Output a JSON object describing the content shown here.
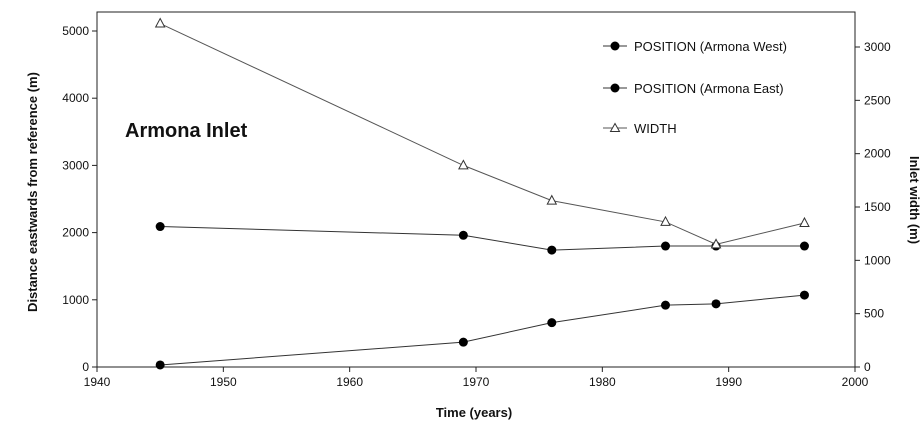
{
  "chart_data": {
    "type": "line",
    "annotation": "Armona Inlet",
    "xlabel": "Time (years)",
    "ylabel_left": "Distance eastwards from reference (m)",
    "ylabel_right": "Inlet width (m)",
    "xlim": [
      1940,
      2000
    ],
    "ylim_left": [
      0,
      5000
    ],
    "ylim_right": [
      0,
      3000
    ],
    "x_ticks": [
      "1940",
      "1950",
      "1960",
      "1970",
      "1980",
      "1990",
      "2000"
    ],
    "y_left_ticks": [
      "0",
      "1000",
      "2000",
      "3000",
      "4000",
      "5000"
    ],
    "y_right_ticks": [
      "0",
      "500",
      "1000",
      "1500",
      "2000",
      "2500",
      "3000"
    ],
    "grid": false,
    "legend_placement": "top-right",
    "series": [
      {
        "name": "POSITION (Armona West)",
        "axis": "left",
        "marker": "filled-circle",
        "x": [
          1945,
          1969,
          1976,
          1985,
          1989,
          1996
        ],
        "y": [
          30,
          370,
          660,
          920,
          940,
          1070
        ]
      },
      {
        "name": "POSITION (Armona East)",
        "axis": "left",
        "marker": "filled-circle",
        "x": [
          1945,
          1969,
          1976,
          1985,
          1989,
          1996
        ],
        "y": [
          2090,
          1960,
          1740,
          1800,
          1800,
          1800
        ]
      },
      {
        "name": "WIDTH",
        "axis": "right",
        "marker": "open-triangle",
        "x": [
          1945,
          1969,
          1976,
          1985,
          1989,
          1996
        ],
        "y": [
          3220,
          1890,
          1560,
          1360,
          1150,
          1350
        ]
      }
    ]
  }
}
